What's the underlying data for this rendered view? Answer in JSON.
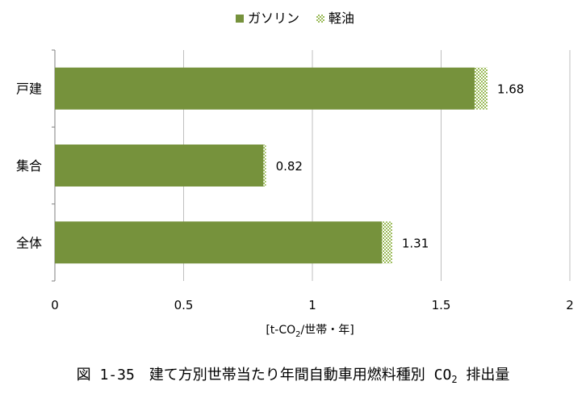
{
  "chart_data": {
    "type": "bar",
    "orientation": "horizontal",
    "stacked": true,
    "categories": [
      "戸建",
      "集合",
      "全体"
    ],
    "series": [
      {
        "name": "ガソリン",
        "values": [
          1.63,
          0.81,
          1.27
        ],
        "color": "#76923c",
        "pattern": "solid"
      },
      {
        "name": "軽油",
        "values": [
          0.05,
          0.01,
          0.04
        ],
        "color": "#9bbb59",
        "pattern": "checker"
      }
    ],
    "totals": [
      "1.68",
      "0.82",
      "1.31"
    ],
    "xlim": [
      0,
      2
    ],
    "xticks": [
      0,
      0.5,
      1,
      1.5,
      2
    ],
    "xtick_labels": [
      "0",
      "0.5",
      "1",
      "1.5",
      "2"
    ],
    "xlabel": "[t-CO2/世帯・年]",
    "xlabel_parts": {
      "pre": "[t-CO",
      "sub": "2",
      "post": "/世帯・年]"
    },
    "grid": "vertical",
    "legend_position": "top-center",
    "caption": {
      "pre": "図 1-35　建て方別世帯当たり年間自動車用燃料種別 CO",
      "sub": "2",
      "post": " 排出量"
    }
  }
}
